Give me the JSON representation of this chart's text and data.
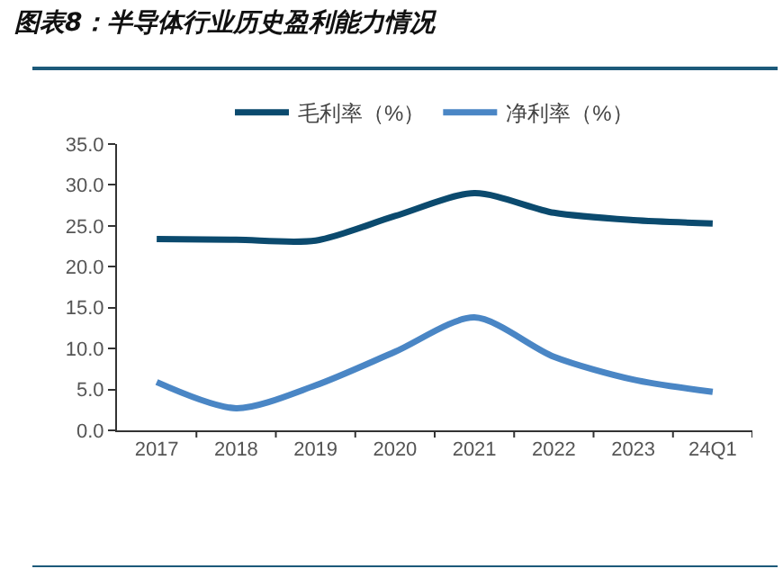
{
  "chart_data": {
    "type": "line",
    "title": "图表8：半导体行业历史盈利能力情况",
    "categories": [
      "2017",
      "2018",
      "2019",
      "2020",
      "2021",
      "2022",
      "2023",
      "24Q1"
    ],
    "series": [
      {
        "name": "毛利率（%）",
        "color": "#0b4a6e",
        "values": [
          23.4,
          23.3,
          23.2,
          26.2,
          29.0,
          26.6,
          25.7,
          25.3
        ]
      },
      {
        "name": "净利率（%）",
        "color": "#4a86c5",
        "values": [
          5.9,
          2.7,
          5.5,
          9.6,
          13.8,
          9.0,
          6.2,
          4.7
        ]
      }
    ],
    "ylim": [
      0,
      35
    ],
    "yticks": [
      {
        "value": 0,
        "label": "0.0"
      },
      {
        "value": 5,
        "label": "5.0"
      },
      {
        "value": 10,
        "label": "10.0"
      },
      {
        "value": 15,
        "label": "15.0"
      },
      {
        "value": 20,
        "label": "20.0"
      },
      {
        "value": 25,
        "label": "25.0"
      },
      {
        "value": 30,
        "label": "30.0"
      },
      {
        "value": 35,
        "label": "35.0"
      }
    ],
    "grid": false,
    "legend": "top",
    "marker": "none",
    "line_style": "solid"
  }
}
